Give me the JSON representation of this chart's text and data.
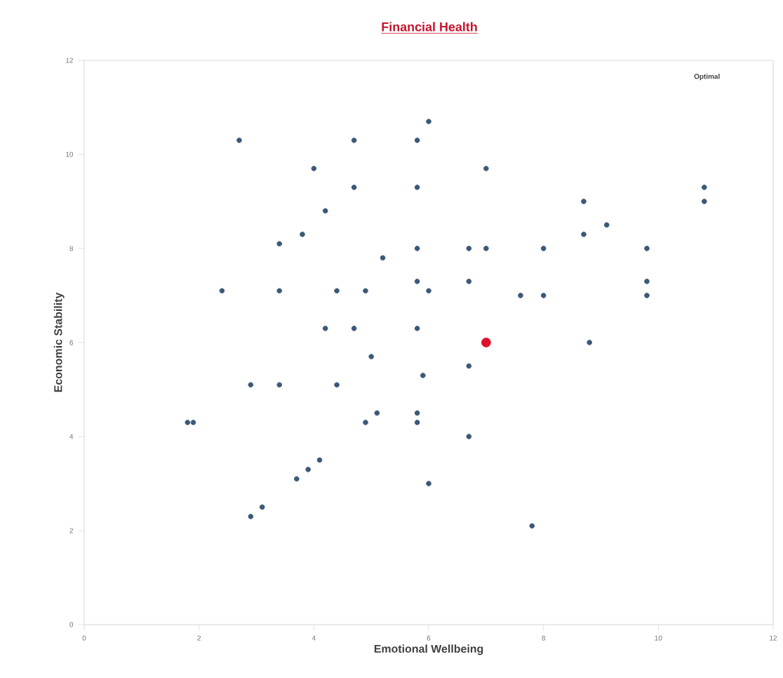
{
  "chart_data": {
    "type": "scatter",
    "title": "Financial Health",
    "xlabel": "Emotional Wellbeing",
    "ylabel": "Economic Stability",
    "xlim": [
      0,
      12
    ],
    "ylim": [
      0,
      12
    ],
    "xticks": [
      0,
      2,
      4,
      6,
      8,
      10,
      12
    ],
    "yticks": [
      0,
      2,
      4,
      6,
      8,
      10,
      12
    ],
    "grid": false,
    "marker": "circle",
    "annotations": [
      "Optimal"
    ],
    "series": [
      {
        "color": "#3b5878",
        "x": [
          2.7,
          4.7,
          5.8,
          6.0,
          4.0,
          7.0,
          4.7,
          5.8,
          4.2,
          3.8,
          3.4,
          5.2,
          5.8,
          6.7,
          7.0,
          8.0,
          2.4,
          3.4,
          4.4,
          4.9,
          5.8,
          6.0,
          6.7,
          7.6,
          8.0,
          4.2,
          4.7,
          5.8,
          5.0,
          8.8,
          6.7,
          5.9,
          2.9,
          3.4,
          4.4,
          5.8,
          5.8,
          5.1,
          4.9,
          6.7,
          1.8,
          1.9,
          4.1,
          3.9,
          3.7,
          6.0,
          3.1,
          2.9,
          7.8,
          8.7,
          8.7,
          9.1,
          10.8,
          10.8,
          9.8,
          9.8,
          9.8
        ],
        "values": [
          10.3,
          10.3,
          10.3,
          10.7,
          9.7,
          9.7,
          9.3,
          9.3,
          8.8,
          8.3,
          8.1,
          7.8,
          8.0,
          8.0,
          8.0,
          8.0,
          7.1,
          7.1,
          7.1,
          7.1,
          7.3,
          7.1,
          7.3,
          7.0,
          7.0,
          6.3,
          6.3,
          6.3,
          5.7,
          6.0,
          5.5,
          5.3,
          5.1,
          5.1,
          5.1,
          4.5,
          4.3,
          4.5,
          4.3,
          4.0,
          4.3,
          4.3,
          3.5,
          3.3,
          3.1,
          3.0,
          2.5,
          2.3,
          2.1,
          9.0,
          8.3,
          8.5,
          9.3,
          9.0,
          8.0,
          7.3,
          7.0
        ]
      },
      {
        "color": "#e0102a",
        "x": [
          7.0
        ],
        "values": [
          6.0
        ]
      }
    ]
  }
}
